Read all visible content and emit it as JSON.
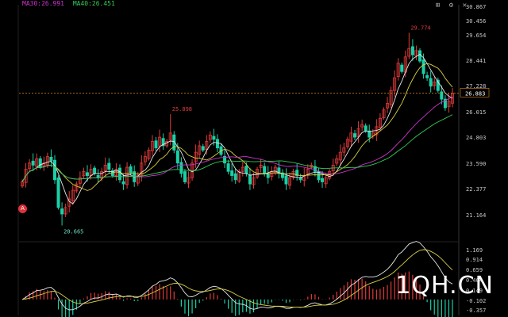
{
  "legend": {
    "items": [
      {
        "label": "MA30:26.991",
        "color": "#cc33cc"
      },
      {
        "label": "MA40:26.451",
        "color": "#33cc55"
      }
    ]
  },
  "toolbar": {
    "icons": [
      "grid-icon",
      "settings-icon",
      "close-icon"
    ],
    "glyphs": [
      "⊞",
      "⚙",
      "✕"
    ]
  },
  "marker": {
    "label": "A"
  },
  "watermark": {
    "text": "1QH.CN"
  },
  "colors": {
    "up": "#e03a3a",
    "down": "#19d0a8",
    "ma30": "#cc33cc",
    "ma40": "#33cc55",
    "ma_white": "#e8e8e8",
    "ma_yellow": "#d8d040",
    "axis_text": "#c8c8c8",
    "current_line": "#e08a20",
    "grid": "#222222"
  },
  "chart_data": [
    {
      "type": "candlestick",
      "ylim": [
        20.0,
        30.867
      ],
      "y_ticks": [
        "30.867",
        "30.456",
        "29.654",
        "28.441",
        "27.228",
        "26.015",
        "24.803",
        "23.590",
        "22.377",
        "21.164"
      ],
      "current_price": "26.883",
      "annotations": {
        "high": "29.774",
        "mid_high": "25.898",
        "low": "20.665"
      },
      "closes": [
        22.7,
        23.3,
        23.6,
        23.5,
        23.8,
        23.4,
        23.6,
        23.9,
        23.7,
        22.8,
        21.5,
        21.2,
        21.5,
        21.9,
        22.3,
        22.6,
        22.9,
        23.2,
        23.0,
        23.3,
        23.1,
        22.9,
        23.2,
        23.5,
        23.3,
        23.0,
        23.3,
        22.8,
        22.6,
        23.4,
        23.1,
        22.7,
        23.0,
        23.6,
        23.9,
        24.2,
        24.6,
        24.3,
        24.8,
        24.4,
        24.6,
        25.0,
        24.2,
        23.6,
        23.1,
        22.7,
        22.9,
        23.6,
        24.1,
        24.4,
        24.2,
        24.6,
        24.9,
        24.7,
        24.3,
        24.0,
        23.6,
        23.2,
        23.0,
        22.8,
        23.2,
        23.4,
        23.1,
        22.6,
        22.9,
        23.3,
        23.5,
        23.1,
        22.9,
        23.2,
        23.4,
        23.1,
        22.9,
        22.6,
        22.9,
        23.2,
        23.0,
        22.8,
        23.0,
        23.3,
        23.5,
        23.2,
        22.8,
        22.7,
        22.9,
        23.2,
        23.5,
        23.8,
        24.1,
        24.3,
        24.7,
        25.0,
        24.8,
        25.2,
        25.4,
        25.1,
        24.8,
        25.0,
        25.3,
        25.7,
        26.1,
        26.4,
        27.0,
        27.6,
        28.3,
        27.9,
        28.6,
        29.0,
        28.7,
        28.9,
        28.4,
        27.8,
        27.6,
        27.2,
        27.4,
        27.0,
        26.6,
        26.2,
        26.5,
        26.88
      ],
      "ma_series": [
        {
          "label": "MA30:26.991",
          "values": [
            26.991
          ]
        },
        {
          "label": "MA40:26.451",
          "values": [
            26.451
          ]
        }
      ],
      "ma_windows": {
        "white": 5,
        "yellow": 10
      }
    },
    {
      "type": "macd",
      "ylim": [
        -0.357,
        1.169
      ],
      "y_ticks": [
        "1.169",
        "0.914",
        "0.659",
        "0.404",
        "0.149",
        "-0.102",
        "-0.357"
      ]
    }
  ]
}
